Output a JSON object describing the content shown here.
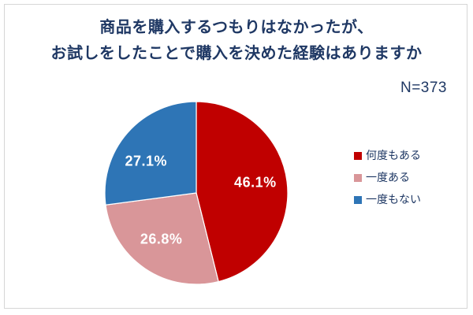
{
  "title": {
    "line1": "商品を購入するつもりはなかったが、",
    "line2": "お試しをしたことで購入を決めた経験はありますか"
  },
  "sample_size_label": "N=373",
  "chart_data": {
    "type": "pie",
    "title": "商品を購入するつもりはなかったが、お試しをしたことで購入を決めた経験はありますか",
    "sample_size": 373,
    "categories": [
      "何度もある",
      "一度ある",
      "一度もない"
    ],
    "values": [
      46.1,
      26.8,
      27.1
    ],
    "labels": [
      "46.1%",
      "26.8%",
      "27.1%"
    ],
    "colors": [
      "#c00000",
      "#d99699",
      "#2e75b6"
    ],
    "start_angle_deg": 0,
    "direction": "clockwise",
    "legend_position": "right",
    "slice_label_color": "#ffffff",
    "title_color": "#1f3864"
  },
  "legend": {
    "items": [
      {
        "label": "何度もある",
        "color": "#c00000"
      },
      {
        "label": "一度ある",
        "color": "#d99699"
      },
      {
        "label": "一度もない",
        "color": "#2e75b6"
      }
    ]
  }
}
